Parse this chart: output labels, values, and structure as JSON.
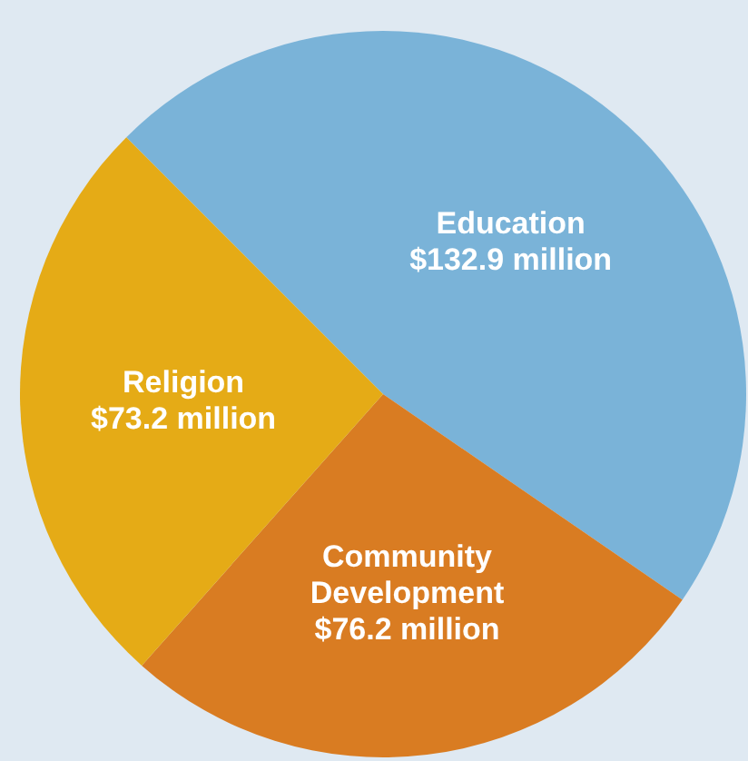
{
  "chart_data": {
    "type": "pie",
    "categories": [
      "Education",
      "Community Development",
      "Religion"
    ],
    "values": [
      132.9,
      76.2,
      73.2
    ],
    "colors": [
      "#7ab3d8",
      "#d97c22",
      "#e5ab16"
    ],
    "value_labels": [
      "$132.9 million",
      "$76.2 million",
      "$73.2 million"
    ]
  }
}
